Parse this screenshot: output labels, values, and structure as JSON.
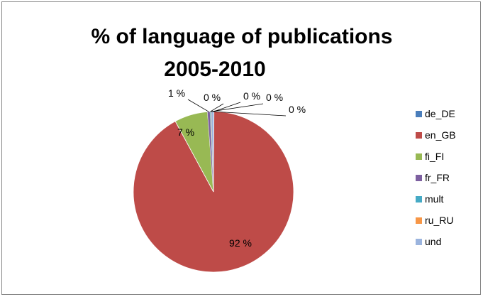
{
  "chart_data": {
    "type": "pie",
    "title": [
      "% of language of publications",
      "2005-2010"
    ],
    "legend_position": "right",
    "slices": [
      {
        "name": "de_DE",
        "value": 0.1,
        "label": "0 %",
        "color": "#4a7ebb"
      },
      {
        "name": "en_GB",
        "value": 91.9,
        "label": "92 %",
        "color": "#be4b48"
      },
      {
        "name": "fi_FI",
        "value": 6.7,
        "label": "7 %",
        "color": "#98b954"
      },
      {
        "name": "fr_FR",
        "value": 0.5,
        "label": "1 %",
        "color": "#7d60a0"
      },
      {
        "name": "mult",
        "value": 0.15,
        "label": "0 %",
        "color": "#46aac5"
      },
      {
        "name": "ru_RU",
        "value": 0.1,
        "label": "0 %",
        "color": "#f79646"
      },
      {
        "name": "und",
        "value": 0.45,
        "label": "0 %",
        "color": "#9bb4de"
      }
    ]
  }
}
